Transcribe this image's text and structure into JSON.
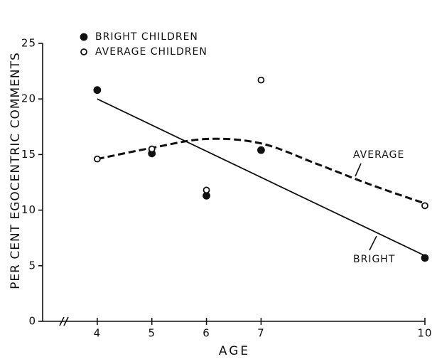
{
  "chart_data": {
    "type": "scatter",
    "x_label": "AGE",
    "y_label": "PER CENT EGOCENTRIC COMMENTS",
    "x": [
      4,
      5,
      6,
      7,
      10
    ],
    "series": [
      {
        "name": "BRIGHT CHILDREN",
        "color": "#111111",
        "marker": "filled",
        "values": [
          20.8,
          15.1,
          11.3,
          15.4,
          5.7
        ]
      },
      {
        "name": "AVERAGE CHILDREN",
        "color": "#111111",
        "marker": "open",
        "values": [
          14.6,
          15.5,
          11.8,
          21.7,
          10.4
        ]
      }
    ],
    "trend_lines": [
      {
        "name": "AVERAGE",
        "style": "dashed",
        "x": [
          4,
          5,
          6,
          7,
          8,
          9,
          10
        ],
        "values": [
          14.6,
          15.6,
          16.4,
          16.0,
          14.2,
          12.3,
          10.6
        ]
      },
      {
        "name": "BRIGHT",
        "style": "solid",
        "x": [
          4,
          10
        ],
        "values": [
          20.0,
          5.9
        ]
      }
    ],
    "xlim": [
      3,
      10
    ],
    "xticks": [
      4,
      5,
      6,
      7,
      10
    ],
    "ylim": [
      0,
      25
    ],
    "yticks": [
      0,
      5,
      10,
      15,
      20,
      25
    ],
    "grid": false
  }
}
